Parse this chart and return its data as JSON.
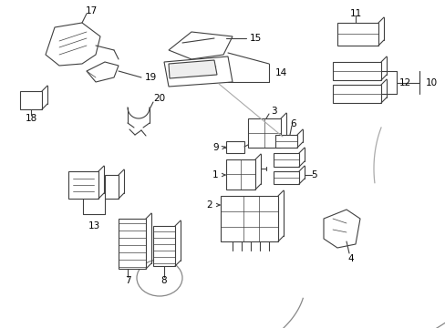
{
  "bg_color": "#ffffff",
  "line_color": "#404040",
  "text_color": "#000000",
  "figsize": [
    4.89,
    3.6
  ],
  "dpi": 100,
  "car_outline_color": "#888888",
  "component_edge": "#404040",
  "component_fill": "#ffffff",
  "component_shade": "#d8d8d8"
}
